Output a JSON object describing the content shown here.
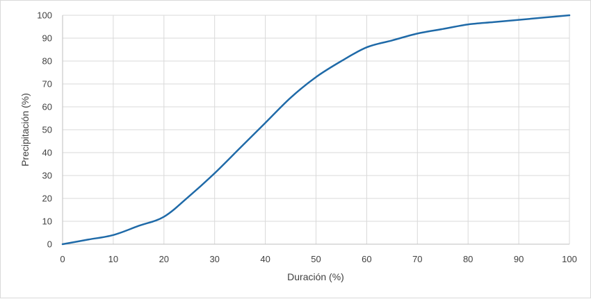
{
  "chart_data": {
    "type": "line",
    "xlabel": "Duración (%)",
    "ylabel": "Precipitación (%)",
    "xlim": [
      0,
      100
    ],
    "ylim": [
      0,
      100
    ],
    "x_ticks": [
      0,
      10,
      20,
      30,
      40,
      50,
      60,
      70,
      80,
      90,
      100
    ],
    "y_ticks": [
      0,
      10,
      20,
      30,
      40,
      50,
      60,
      70,
      80,
      90,
      100
    ],
    "grid": true,
    "legend": "none",
    "series": [
      {
        "color": "#1f6aa8",
        "x": [
          0,
          5,
          10,
          15,
          20,
          25,
          30,
          35,
          40,
          45,
          50,
          55,
          60,
          65,
          70,
          75,
          80,
          85,
          90,
          95,
          100
        ],
        "y": [
          0,
          2,
          4,
          8,
          12,
          21,
          31,
          42,
          53,
          64,
          73,
          80,
          86,
          89,
          92,
          94,
          96,
          97,
          98,
          99,
          100
        ]
      }
    ]
  }
}
